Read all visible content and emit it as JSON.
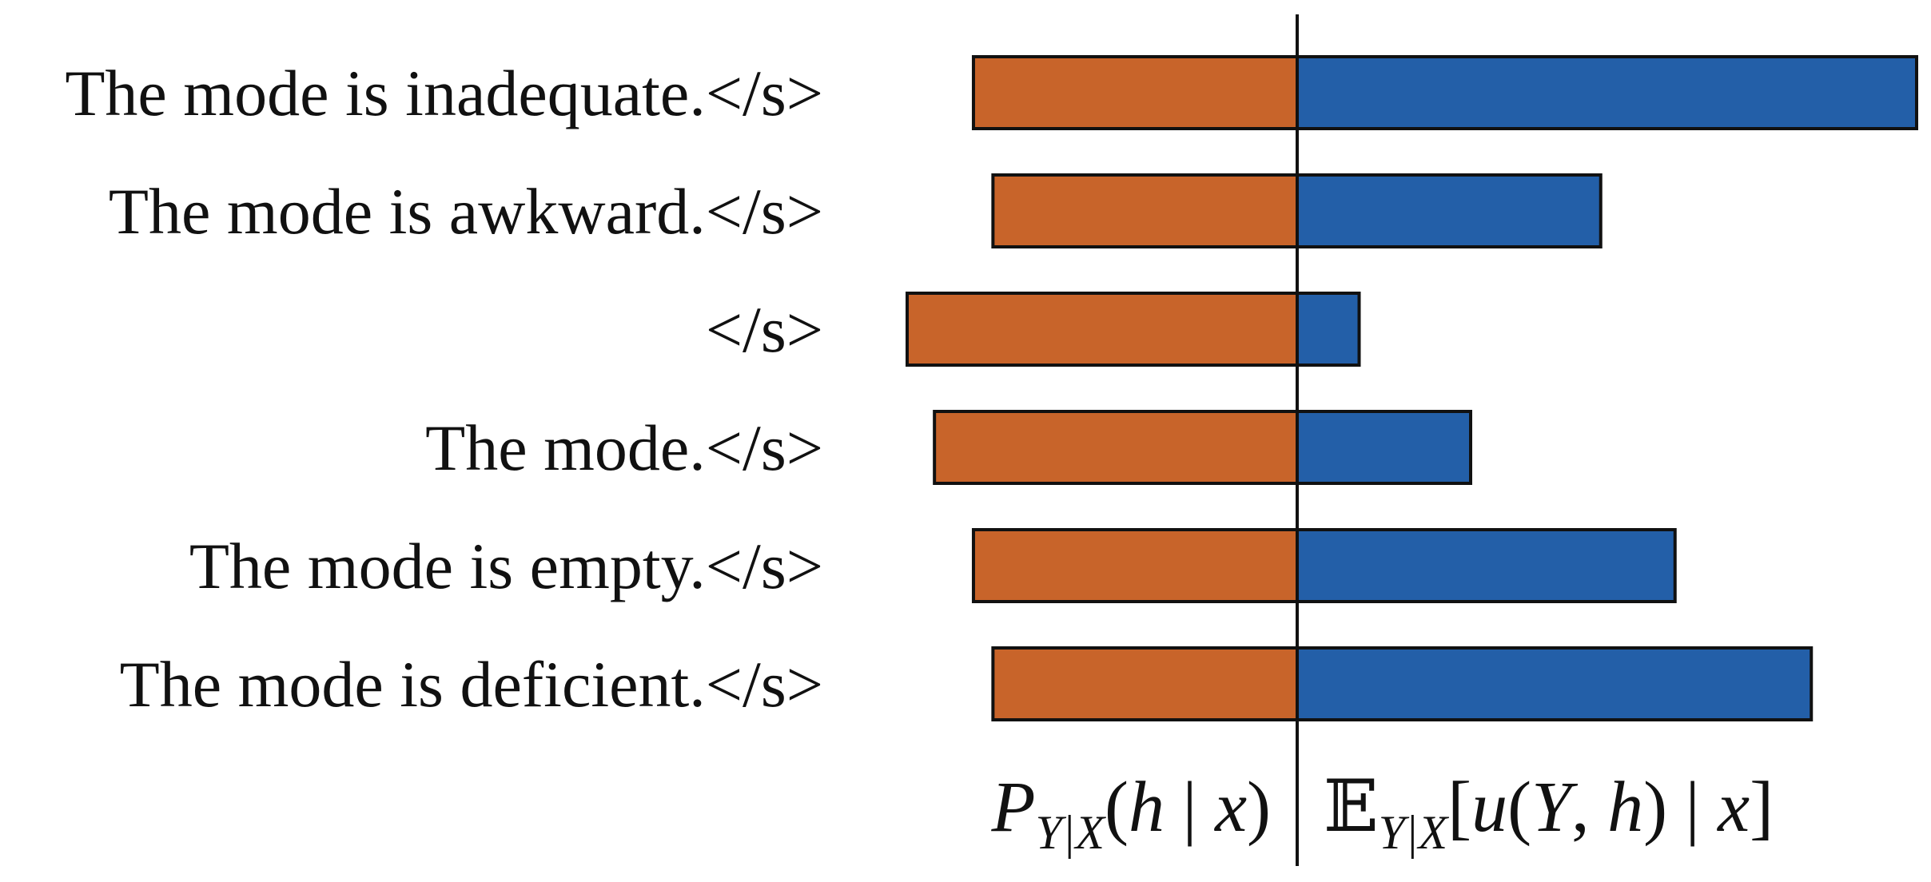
{
  "chart_data": {
    "type": "bar",
    "orientation": "horizontal-diverging",
    "categories": [
      "The mode is inadequate.</s>",
      "The mode is awkward.</s>",
      "</s>",
      "The mode.</s>",
      "The mode is empty.</s>",
      "The mode is deficient.</s>"
    ],
    "series": [
      {
        "name": "P_{Y|X}(h | x)",
        "side": "left",
        "color": "#c8642a",
        "values": [
          0.83,
          0.78,
          1.0,
          0.93,
          0.83,
          0.78
        ]
      },
      {
        "name": "E_{Y|X}[u(Y, h) | x]",
        "side": "right",
        "color": "#235fa8",
        "values": [
          1.0,
          0.49,
          0.1,
          0.28,
          0.61,
          0.83
        ]
      }
    ],
    "grid": false,
    "legend": "bottom (axis labels under each side)"
  },
  "axis_labels": {
    "left": {
      "main": "P",
      "sub": "Y|X",
      "args_open": "(",
      "h": "h",
      "bar": " | ",
      "x": "x",
      "args_close": ")"
    },
    "right": {
      "main": "𝔼",
      "sub": "Y|X",
      "open": "[",
      "u": "u",
      "paren_open": "(",
      "Y": "Y",
      "comma": ", ",
      "h": "h",
      "paren_close": ")",
      "bar": " | ",
      "x": "x",
      "close": "]"
    }
  }
}
